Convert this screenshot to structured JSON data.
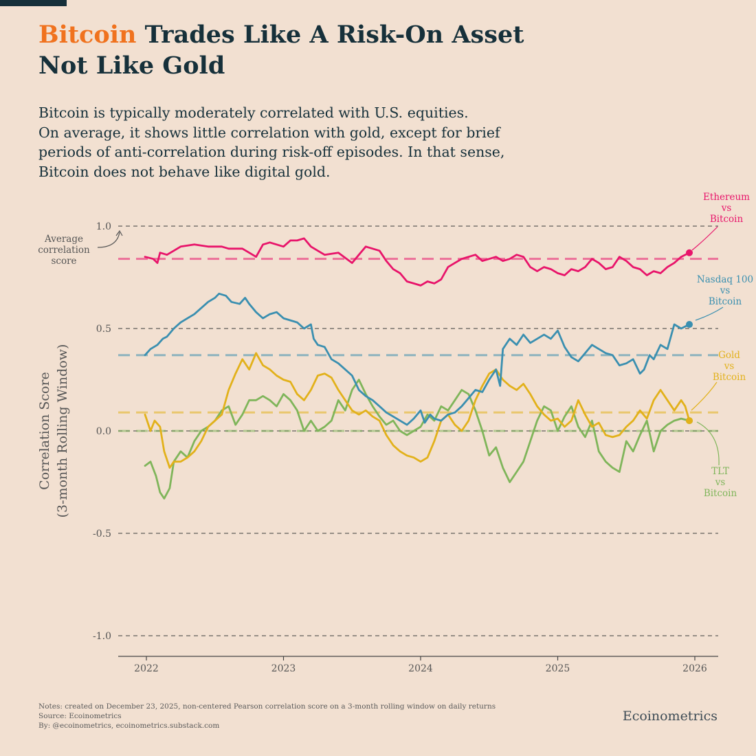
{
  "header": {
    "title_accent": "Bitcoin",
    "title_rest": " Trades Like A Risk-On Asset",
    "title_line2": "Not Like Gold",
    "subtitle_lines": [
      "Bitcoin is typically moderately correlated with U.S. equities.",
      "On average, it shows little correlation with gold, except for brief",
      "periods of anti-correlation during risk-off episodes. In that sense,",
      "Bitcoin does not behave like digital gold."
    ]
  },
  "colors": {
    "title_accent": "#f0721e",
    "ethereum": "#e8146a",
    "nasdaq": "#3a8fb0",
    "gold": "#e2b11a",
    "tlt": "#7fb55a",
    "text": "#16303a",
    "axis": "#444444"
  },
  "chart_data": {
    "type": "line",
    "title": "Bitcoin Trades Like A Risk-On Asset Not Like Gold",
    "ylabel_line1": "Correlation Score",
    "ylabel_line2": "(3-month Rolling Window)",
    "xlabel": "",
    "ylim": [
      -1.0,
      1.0
    ],
    "xlim": [
      2021.78,
      2026.17
    ],
    "y_ticks": [
      1.0,
      0.5,
      0.0,
      -0.5,
      -1.0
    ],
    "y_tick_labels": [
      "1.0",
      "0.5",
      "0.0",
      "-0.5",
      "-1.0"
    ],
    "x_ticks": [
      2022,
      2023,
      2024,
      2025,
      2026
    ],
    "x_tick_labels": [
      "2022",
      "2023",
      "2024",
      "2025",
      "2026"
    ],
    "grid": "horizontal dashed",
    "average_annotation": "Average correlation score",
    "average_annotation_lines": [
      "Average",
      "correlation",
      "score"
    ],
    "series": [
      {
        "name": "Ethereum vs Bitcoin",
        "label_lines": [
          "Ethereum",
          "vs",
          "Bitcoin"
        ],
        "color_key": "ethereum",
        "average": 0.84,
        "x": [
          2021.99,
          2022.05,
          2022.08,
          2022.1,
          2022.15,
          2022.2,
          2022.25,
          2022.35,
          2022.45,
          2022.55,
          2022.6,
          2022.7,
          2022.75,
          2022.8,
          2022.85,
          2022.9,
          2023.0,
          2023.05,
          2023.1,
          2023.15,
          2023.2,
          2023.25,
          2023.3,
          2023.4,
          2023.5,
          2023.55,
          2023.6,
          2023.7,
          2023.75,
          2023.8,
          2023.85,
          2023.9,
          2023.95,
          2024.0,
          2024.05,
          2024.1,
          2024.15,
          2024.2,
          2024.25,
          2024.3,
          2024.35,
          2024.4,
          2024.45,
          2024.5,
          2024.55,
          2024.6,
          2024.65,
          2024.7,
          2024.75,
          2024.8,
          2024.85,
          2024.9,
          2024.95,
          2025.0,
          2025.05,
          2025.1,
          2025.15,
          2025.2,
          2025.25,
          2025.3,
          2025.35,
          2025.4,
          2025.45,
          2025.5,
          2025.55,
          2025.6,
          2025.65,
          2025.7,
          2025.75,
          2025.8,
          2025.85,
          2025.9,
          2025.96
        ],
        "values": [
          0.85,
          0.84,
          0.82,
          0.87,
          0.86,
          0.88,
          0.9,
          0.91,
          0.9,
          0.9,
          0.89,
          0.89,
          0.87,
          0.85,
          0.91,
          0.92,
          0.9,
          0.93,
          0.93,
          0.94,
          0.9,
          0.88,
          0.86,
          0.87,
          0.82,
          0.86,
          0.9,
          0.88,
          0.83,
          0.79,
          0.77,
          0.73,
          0.72,
          0.71,
          0.73,
          0.72,
          0.74,
          0.8,
          0.82,
          0.84,
          0.85,
          0.86,
          0.83,
          0.84,
          0.85,
          0.83,
          0.84,
          0.86,
          0.85,
          0.8,
          0.78,
          0.8,
          0.79,
          0.77,
          0.76,
          0.79,
          0.78,
          0.8,
          0.84,
          0.82,
          0.79,
          0.8,
          0.85,
          0.83,
          0.8,
          0.79,
          0.76,
          0.78,
          0.77,
          0.8,
          0.82,
          0.85,
          0.87
        ]
      },
      {
        "name": "Nasdaq 100 vs Bitcoin",
        "label_lines": [
          "Nasdaq 100",
          "vs",
          "Bitcoin"
        ],
        "color_key": "nasdaq",
        "average": 0.37,
        "x": [
          2021.99,
          2022.03,
          2022.08,
          2022.12,
          2022.15,
          2022.2,
          2022.25,
          2022.3,
          2022.35,
          2022.4,
          2022.45,
          2022.5,
          2022.53,
          2022.58,
          2022.62,
          2022.68,
          2022.72,
          2022.75,
          2022.8,
          2022.85,
          2022.9,
          2022.95,
          2023.0,
          2023.05,
          2023.1,
          2023.15,
          2023.2,
          2023.22,
          2023.25,
          2023.3,
          2023.35,
          2023.4,
          2023.45,
          2023.5,
          2023.55,
          2023.6,
          2023.65,
          2023.7,
          2023.75,
          2023.8,
          2023.85,
          2023.9,
          2023.95,
          2024.0,
          2024.03,
          2024.07,
          2024.1,
          2024.15,
          2024.2,
          2024.25,
          2024.3,
          2024.35,
          2024.4,
          2024.45,
          2024.5,
          2024.55,
          2024.58,
          2024.6,
          2024.65,
          2024.7,
          2024.75,
          2024.8,
          2024.85,
          2024.9,
          2024.95,
          2025.0,
          2025.05,
          2025.1,
          2025.15,
          2025.2,
          2025.25,
          2025.3,
          2025.35,
          2025.4,
          2025.45,
          2025.5,
          2025.55,
          2025.6,
          2025.63,
          2025.67,
          2025.7,
          2025.75,
          2025.8,
          2025.85,
          2025.9,
          2025.96
        ],
        "values": [
          0.37,
          0.4,
          0.42,
          0.45,
          0.46,
          0.5,
          0.53,
          0.55,
          0.57,
          0.6,
          0.63,
          0.65,
          0.67,
          0.66,
          0.63,
          0.62,
          0.65,
          0.62,
          0.58,
          0.55,
          0.57,
          0.58,
          0.55,
          0.54,
          0.53,
          0.5,
          0.52,
          0.45,
          0.42,
          0.41,
          0.35,
          0.33,
          0.3,
          0.27,
          0.2,
          0.17,
          0.15,
          0.12,
          0.09,
          0.07,
          0.05,
          0.03,
          0.06,
          0.1,
          0.04,
          0.08,
          0.06,
          0.05,
          0.08,
          0.09,
          0.12,
          0.16,
          0.2,
          0.19,
          0.25,
          0.3,
          0.22,
          0.4,
          0.45,
          0.42,
          0.47,
          0.43,
          0.45,
          0.47,
          0.45,
          0.49,
          0.41,
          0.36,
          0.34,
          0.38,
          0.42,
          0.4,
          0.38,
          0.37,
          0.32,
          0.33,
          0.35,
          0.28,
          0.3,
          0.37,
          0.35,
          0.42,
          0.4,
          0.52,
          0.5,
          0.52
        ]
      },
      {
        "name": "Gold vs Bitcoin",
        "label_lines": [
          "Gold",
          "vs",
          "Bitcoin"
        ],
        "color_key": "gold",
        "average": 0.09,
        "x": [
          2021.99,
          2022.03,
          2022.06,
          2022.1,
          2022.13,
          2022.17,
          2022.2,
          2022.25,
          2022.3,
          2022.35,
          2022.4,
          2022.45,
          2022.5,
          2022.55,
          2022.6,
          2022.65,
          2022.7,
          2022.75,
          2022.8,
          2022.85,
          2022.9,
          2022.95,
          2023.0,
          2023.05,
          2023.1,
          2023.15,
          2023.2,
          2023.25,
          2023.3,
          2023.35,
          2023.4,
          2023.45,
          2023.5,
          2023.55,
          2023.6,
          2023.65,
          2023.7,
          2023.75,
          2023.8,
          2023.85,
          2023.9,
          2023.95,
          2024.0,
          2024.05,
          2024.1,
          2024.15,
          2024.2,
          2024.25,
          2024.3,
          2024.35,
          2024.4,
          2024.45,
          2024.5,
          2024.55,
          2024.6,
          2024.65,
          2024.7,
          2024.75,
          2024.8,
          2024.85,
          2024.9,
          2024.95,
          2025.0,
          2025.05,
          2025.1,
          2025.15,
          2025.2,
          2025.25,
          2025.3,
          2025.35,
          2025.4,
          2025.45,
          2025.5,
          2025.55,
          2025.6,
          2025.65,
          2025.7,
          2025.75,
          2025.8,
          2025.85,
          2025.9,
          2025.93,
          2025.96
        ],
        "values": [
          0.08,
          0.0,
          0.05,
          0.02,
          -0.1,
          -0.18,
          -0.15,
          -0.15,
          -0.13,
          -0.1,
          -0.05,
          0.02,
          0.05,
          0.08,
          0.2,
          0.28,
          0.35,
          0.3,
          0.38,
          0.32,
          0.3,
          0.27,
          0.25,
          0.24,
          0.18,
          0.15,
          0.2,
          0.27,
          0.28,
          0.26,
          0.2,
          0.15,
          0.1,
          0.08,
          0.1,
          0.07,
          0.05,
          -0.02,
          -0.07,
          -0.1,
          -0.12,
          -0.13,
          -0.15,
          -0.13,
          -0.05,
          0.05,
          0.08,
          0.03,
          0.0,
          0.05,
          0.15,
          0.22,
          0.28,
          0.3,
          0.25,
          0.22,
          0.2,
          0.23,
          0.18,
          0.12,
          0.08,
          0.05,
          0.06,
          0.02,
          0.05,
          0.15,
          0.08,
          0.02,
          0.04,
          -0.02,
          -0.03,
          -0.02,
          0.02,
          0.05,
          0.1,
          0.06,
          0.15,
          0.2,
          0.15,
          0.1,
          0.15,
          0.12,
          0.05
        ]
      },
      {
        "name": "TLT vs Bitcoin",
        "label_lines": [
          "TLT",
          "vs",
          "Bitcoin"
        ],
        "color_key": "tlt",
        "average": 0.0,
        "x": [
          2021.99,
          2022.03,
          2022.07,
          2022.1,
          2022.13,
          2022.17,
          2022.2,
          2022.25,
          2022.3,
          2022.35,
          2022.4,
          2022.45,
          2022.5,
          2022.55,
          2022.6,
          2022.65,
          2022.7,
          2022.75,
          2022.8,
          2022.85,
          2022.9,
          2022.95,
          2023.0,
          2023.05,
          2023.1,
          2023.15,
          2023.2,
          2023.25,
          2023.3,
          2023.35,
          2023.4,
          2023.45,
          2023.5,
          2023.55,
          2023.6,
          2023.65,
          2023.7,
          2023.75,
          2023.8,
          2023.85,
          2023.9,
          2023.95,
          2024.0,
          2024.05,
          2024.1,
          2024.15,
          2024.2,
          2024.25,
          2024.3,
          2024.35,
          2024.4,
          2024.45,
          2024.5,
          2024.55,
          2024.6,
          2024.65,
          2024.7,
          2024.75,
          2024.8,
          2024.85,
          2024.9,
          2024.95,
          2025.0,
          2025.05,
          2025.1,
          2025.15,
          2025.2,
          2025.25,
          2025.3,
          2025.35,
          2025.4,
          2025.45,
          2025.5,
          2025.55,
          2025.6,
          2025.65,
          2025.7,
          2025.75,
          2025.8,
          2025.85,
          2025.9,
          2025.96
        ],
        "values": [
          -0.17,
          -0.15,
          -0.22,
          -0.3,
          -0.33,
          -0.28,
          -0.15,
          -0.1,
          -0.13,
          -0.05,
          0.0,
          0.02,
          0.05,
          0.1,
          0.12,
          0.03,
          0.08,
          0.15,
          0.15,
          0.17,
          0.15,
          0.12,
          0.18,
          0.15,
          0.1,
          0.0,
          0.05,
          0.0,
          0.02,
          0.05,
          0.15,
          0.1,
          0.2,
          0.25,
          0.18,
          0.12,
          0.07,
          0.03,
          0.05,
          0.0,
          -0.02,
          0.0,
          0.02,
          0.08,
          0.05,
          0.12,
          0.1,
          0.15,
          0.2,
          0.18,
          0.1,
          0.0,
          -0.12,
          -0.08,
          -0.18,
          -0.25,
          -0.2,
          -0.15,
          -0.05,
          0.05,
          0.12,
          0.1,
          0.0,
          0.07,
          0.12,
          0.02,
          -0.03,
          0.05,
          -0.1,
          -0.15,
          -0.18,
          -0.2,
          -0.05,
          -0.1,
          -0.02,
          0.05,
          -0.1,
          0.0,
          0.03,
          0.05,
          0.06,
          0.05
        ]
      }
    ]
  },
  "footer": {
    "notes": "Notes: created on December 23, 2025, non-centered Pearson correlation score on a 3-month rolling window on daily returns",
    "source": "Source: Ecoinometrics",
    "by": "By: @ecoinometrics, ecoinometrics.substack.com",
    "brand": "Ecoinometrics"
  }
}
